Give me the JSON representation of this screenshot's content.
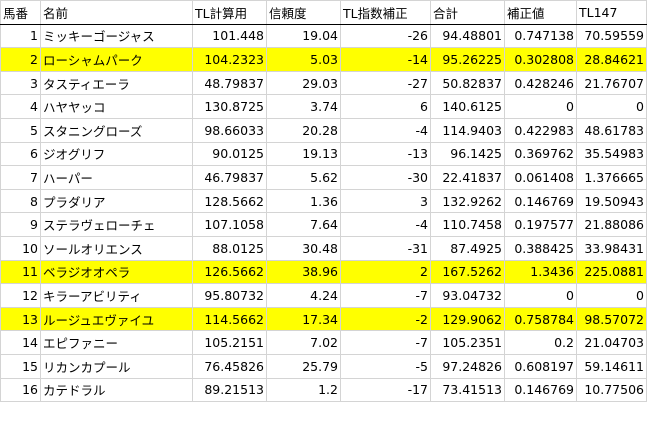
{
  "headers": [
    "馬番",
    "名前",
    "TL計算用",
    "信頼度",
    "TL指数補正",
    "合計",
    "補正値",
    "TL147"
  ],
  "highlight_color": "#ffff00",
  "rows": [
    {
      "no": "1",
      "name": "ミッキーゴージャス",
      "tl": "101.448",
      "trust": "19.04",
      "corr": "-26",
      "total": "94.48801",
      "val": "0.747138",
      "tl147": "70.59559",
      "hl": false
    },
    {
      "no": "2",
      "name": "ローシャムパーク",
      "tl": "104.2323",
      "trust": "5.03",
      "corr": "-14",
      "total": "95.26225",
      "val": "0.302808",
      "tl147": "28.84621",
      "hl": true
    },
    {
      "no": "3",
      "name": "タスティエーラ",
      "tl": "48.79837",
      "trust": "29.03",
      "corr": "-27",
      "total": "50.82837",
      "val": "0.428246",
      "tl147": "21.76707",
      "hl": false
    },
    {
      "no": "4",
      "name": "ハヤヤッコ",
      "tl": "130.8725",
      "trust": "3.74",
      "corr": "6",
      "total": "140.6125",
      "val": "0",
      "tl147": "0",
      "hl": false
    },
    {
      "no": "5",
      "name": "スタニングローズ",
      "tl": "98.66033",
      "trust": "20.28",
      "corr": "-4",
      "total": "114.9403",
      "val": "0.422983",
      "tl147": "48.61783",
      "hl": false
    },
    {
      "no": "6",
      "name": "ジオグリフ",
      "tl": "90.0125",
      "trust": "19.13",
      "corr": "-13",
      "total": "96.1425",
      "val": "0.369762",
      "tl147": "35.54983",
      "hl": false
    },
    {
      "no": "7",
      "name": "ハーパー",
      "tl": "46.79837",
      "trust": "5.62",
      "corr": "-30",
      "total": "22.41837",
      "val": "0.061408",
      "tl147": "1.376665",
      "hl": false
    },
    {
      "no": "8",
      "name": "プラダリア",
      "tl": "128.5662",
      "trust": "1.36",
      "corr": "3",
      "total": "132.9262",
      "val": "0.146769",
      "tl147": "19.50943",
      "hl": false
    },
    {
      "no": "9",
      "name": "ステラヴェローチェ",
      "tl": "107.1058",
      "trust": "7.64",
      "corr": "-4",
      "total": "110.7458",
      "val": "0.197577",
      "tl147": "21.88086",
      "hl": false
    },
    {
      "no": "10",
      "name": "ソールオリエンス",
      "tl": "88.0125",
      "trust": "30.48",
      "corr": "-31",
      "total": "87.4925",
      "val": "0.388425",
      "tl147": "33.98431",
      "hl": false
    },
    {
      "no": "11",
      "name": "ベラジオオペラ",
      "tl": "126.5662",
      "trust": "38.96",
      "corr": "2",
      "total": "167.5262",
      "val": "1.3436",
      "tl147": "225.0881",
      "hl": true
    },
    {
      "no": "12",
      "name": "キラーアビリティ",
      "tl": "95.80732",
      "trust": "4.24",
      "corr": "-7",
      "total": "93.04732",
      "val": "0",
      "tl147": "0",
      "hl": false
    },
    {
      "no": "13",
      "name": "ルージュエヴァイユ",
      "tl": "114.5662",
      "trust": "17.34",
      "corr": "-2",
      "total": "129.9062",
      "val": "0.758784",
      "tl147": "98.57072",
      "hl": true
    },
    {
      "no": "14",
      "name": "エピファニー",
      "tl": "105.2151",
      "trust": "7.02",
      "corr": "-7",
      "total": "105.2351",
      "val": "0.2",
      "tl147": "21.04703",
      "hl": false
    },
    {
      "no": "15",
      "name": "リカンカプール",
      "tl": "76.45826",
      "trust": "25.79",
      "corr": "-5",
      "total": "97.24826",
      "val": "0.608197",
      "tl147": "59.14611",
      "hl": false
    },
    {
      "no": "16",
      "name": "カテドラル",
      "tl": "89.21513",
      "trust": "1.2",
      "corr": "-17",
      "total": "73.41513",
      "val": "0.146769",
      "tl147": "10.77506",
      "hl": false
    }
  ]
}
